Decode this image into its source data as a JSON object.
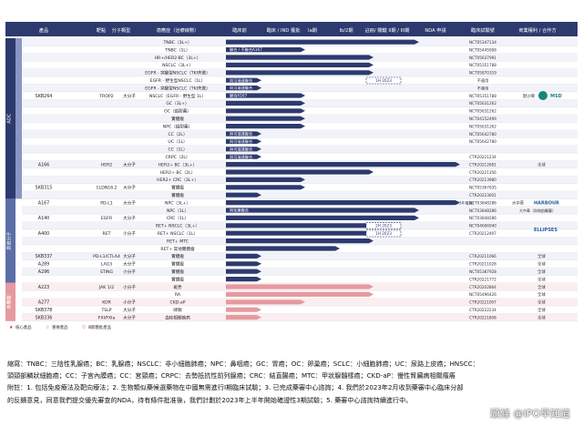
{
  "header": {
    "product": "產品",
    "target": "靶點",
    "molecule": "分子類型",
    "indication": "適應症（治療線數）",
    "preclinical": "臨床前",
    "ind": "臨床 / IND 獲批",
    "phase1a": "Ia期",
    "phase1b2": "Ib/2期",
    "pivotal": "註冊/ 關鍵 II期 / III期",
    "nda": "NDA 申請",
    "ctr": "臨床試驗號",
    "rights": "商業權利 / 合作方"
  },
  "groups": [
    {
      "name": "ADC"
    },
    {
      "name": "腫瘤"
    },
    {
      "name": "其他分子"
    },
    {
      "name": "非腫瘤"
    }
  ],
  "rows": [
    {
      "product": "",
      "target": "",
      "mol": "",
      "ind": "TNBC（3L+）",
      "bar": 5,
      "note": "",
      "ctr": "NCT05347134"
    },
    {
      "product": "",
      "target": "",
      "mol": "",
      "ind": "TNBC（1L）",
      "bar": 2,
      "note": "聯合 / 不聯合A167",
      "ctr": "NCT05445908"
    },
    {
      "product": "",
      "target": "",
      "mol": "",
      "ind": "HR+/HER2-BC（3L+）",
      "bar": 4,
      "note": "",
      "ctr": "NCT05637991"
    },
    {
      "product": "",
      "target": "",
      "mol": "",
      "ind": "NSCLC（3L+）",
      "bar": 4,
      "note": "",
      "ctr": "NCT05351788"
    },
    {
      "product": "",
      "target": "",
      "mol": "",
      "ind": "EGFR - 突變型NSCLC（TKI失敗）",
      "bar": 4,
      "note": "",
      "ctr": "NCT05870319"
    },
    {
      "product": "",
      "target": "",
      "mol": "",
      "ind": "EGFR - 野生型NSCLC（1L）",
      "bar": 1,
      "note": "與可瑞達聯合",
      "ctr": "不適用"
    },
    {
      "product": "",
      "target": "",
      "mol": "",
      "ind": "EGFR - 突變型NSCLC（TKI失敗）",
      "bar": 1,
      "note": "與可瑞達聯合",
      "ctr": "不適用"
    },
    {
      "product": "SKB264",
      "target": "TROP2",
      "mol": "大分子",
      "ind": "NSCLC（EGFR - 野生型 1L）",
      "bar": 2,
      "note": "聯合A167",
      "ctr": "NCT05351788"
    },
    {
      "product": "",
      "target": "",
      "mol": "",
      "ind": "GC（3L+）",
      "bar": 2,
      "note": "",
      "ctr": "NCT05631262"
    },
    {
      "product": "",
      "target": "",
      "mol": "",
      "ind": "OC（鉑耐藥）",
      "bar": 2,
      "note": "",
      "ctr": "NCT05631262"
    },
    {
      "product": "",
      "target": "",
      "mol": "",
      "ind": "實體瘤",
      "bar": 2,
      "note": "",
      "ctr": "NCT04152499"
    },
    {
      "product": "",
      "target": "",
      "mol": "",
      "ind": "NPC（鉑耐藥）",
      "bar": 2,
      "note": "",
      "ctr": "NCT05631262"
    },
    {
      "product": "",
      "target": "",
      "mol": "",
      "ind": "CC（2L）",
      "bar": 1,
      "note": "與可瑞達聯合",
      "ctr": "NCT05642780"
    },
    {
      "product": "",
      "target": "",
      "mol": "",
      "ind": "UC（1L）",
      "bar": 1,
      "note": "與可瑞達聯合",
      "ctr": "NCT05642780"
    },
    {
      "product": "",
      "target": "",
      "mol": "",
      "ind": "CC（1L）",
      "bar": 1,
      "note": "與可瑞達聯合",
      "ctr": ""
    },
    {
      "product": "",
      "target": "",
      "mol": "",
      "ind": "CRPC（2L）",
      "bar": 1,
      "note": "與可瑞達聯合",
      "ctr": "CTR20221234"
    },
    {
      "product": "A166",
      "target": "HER2",
      "mol": "大分子",
      "ind": "HER2+ BC（3L+）",
      "bar": 6,
      "note": "",
      "ctr": "CTR20212681"
    },
    {
      "product": "",
      "target": "",
      "mol": "",
      "ind": "HER2+ BC（2L）",
      "bar": 4,
      "note": "",
      "ctr": "CTR20221356"
    },
    {
      "product": "",
      "target": "",
      "mol": "",
      "ind": "HER2+ CRC（3L+）",
      "bar": 2,
      "note": "",
      "ctr": "CTR20213980"
    },
    {
      "product": "SKB315",
      "target": "CLDN18.2",
      "mol": "大分子",
      "ind": "實體瘤",
      "bar": 2,
      "note": "",
      "ctr": "NCT05367635"
    },
    {
      "product": "",
      "target": "",
      "mol": "",
      "ind": "實體瘤",
      "bar": 1,
      "note": "",
      "ctr": "CTR20223001"
    },
    {
      "product": "A167",
      "target": "PD-L1",
      "mol": "大分子",
      "ind": "NPC（3L+）",
      "bar": 6,
      "note": "",
      "ctr": "NCT03848286"
    },
    {
      "product": "",
      "target": "",
      "mol": "",
      "ind": "NPC（1L）",
      "bar": 5,
      "note": "與化療聯合",
      "ctr": "NCT03848286"
    },
    {
      "product": "A140",
      "target": "EGFR",
      "mol": "大分子",
      "ind": "CRC（1L）",
      "bar": 5,
      "note": "",
      "ctr": "NCT03848286"
    },
    {
      "product": "",
      "target": "",
      "mol": "",
      "ind": "RET+ NSCLC（3L+）",
      "bar": 4,
      "note": "",
      "ctr": "NCT04606940"
    },
    {
      "product": "A400",
      "target": "RET",
      "mol": "小分子",
      "ind": "RET+ NSCLC（1L）",
      "bar": 4,
      "note": "",
      "ctr": "CTR20212497"
    },
    {
      "product": "",
      "target": "",
      "mol": "",
      "ind": "RET+ MTC",
      "bar": 4,
      "note": "",
      "ctr": ""
    },
    {
      "product": "",
      "target": "",
      "mol": "",
      "ind": "RET+ 其他實體瘤",
      "bar": 3,
      "note": "",
      "ctr": ""
    },
    {
      "product": "SKB337",
      "target": "PD-L1/CTLA4",
      "mol": "大分子",
      "ind": "實體瘤",
      "bar": 1,
      "note": "",
      "ctr": "CTR20211066"
    },
    {
      "product": "A289",
      "target": "LAG3",
      "mol": "大分子",
      "ind": "實體瘤",
      "bar": 1,
      "note": "",
      "ctr": "CTR20211028"
    },
    {
      "product": "A296",
      "target": "STING",
      "mol": "小分子",
      "ind": "實體瘤",
      "bar": 1,
      "note": "",
      "ctr": "NCT05387928"
    },
    {
      "product": "",
      "target": "",
      "mol": "",
      "ind": "實體瘤",
      "bar": 1,
      "note": "",
      "ctr": "CTR20221772"
    },
    {
      "product": "A223",
      "target": "JAK 1/2",
      "mol": "小分子",
      "ind": "斑禿",
      "bar": 4,
      "note": "",
      "ctr": "CTR20202864"
    },
    {
      "product": "",
      "target": "",
      "mol": "",
      "ind": "RA",
      "bar": 4,
      "note": "",
      "ctr": "NCT05496426"
    },
    {
      "product": "A277",
      "target": "KOR",
      "mol": "小分子",
      "ind": "CKD-aP",
      "bar": 2,
      "note": "",
      "ctr": "CTR20221007"
    },
    {
      "product": "SKB378",
      "target": "TSLP",
      "mol": "大分子",
      "ind": "哮喘",
      "bar": 1,
      "note": "",
      "ctr": "CTR20222234"
    },
    {
      "product": "SKB336",
      "target": "FXI/FXIa",
      "mol": "大分子",
      "ind": "血栓相關疾病",
      "bar": 1,
      "note": "",
      "ctr": "CTR20221808"
    }
  ],
  "callouts": {
    "skb264_timing": "1H 2023",
    "a166_nda": "已遞交pre-NDA",
    "a167_nda": "已遞交 NDA（預計2023年獲批）",
    "a400_timing1": "2H 2023",
    "a400_timing2": "1H 2023"
  },
  "partners": {
    "skb264": "默沙東",
    "msd": "MSD",
    "harbour": "HARBOUR",
    "ellipses": "ELLIPSES",
    "a167_rights": "大中華",
    "full_rights": "全球",
    "harbour_note": "大中華（與和鉑醫藥）"
  },
  "legend": {
    "star": "核心產品",
    "star2": "重要產品",
    "fda": "Ⅲ期獲批產品"
  },
  "notes": [
    "縮寫：TNBC：三陰性乳腺癌；BC：乳腺癌；NSCLC：非小細胞肺癌；NPC：鼻咽癌；GC：胃癌；OC：卵巢癌；SCLC：小細胞肺癌；UC：尿路上皮癌；HNSCC：",
    "頭頸部鱗狀細胞癌；CC：子宮內膜癌；CC：宮頸癌；CRPC：去勢抵抗性前列腺癌；CRC：結直腸癌；MTC：甲狀腺髓樣癌；CKD-aP：慢性腎臟病相關瘙癢",
    "附註：1. 包括免疫療法及靶向療法；2. 生物類似藥候選藥物在中國無需進行I期臨床試驗；3. 已完成藥審中心諮詢；4. 我們於2023年2月收到藥審中心臨床分部",
    "的反饋意見，同意我們提交優先審查的NDA，待有條件批准後，我們計劃於2023年上半年開始確證性3期試驗；5. 藥審中心諮詢持續進行中。"
  ],
  "watermark": "頭條 @IPO早知道"
}
